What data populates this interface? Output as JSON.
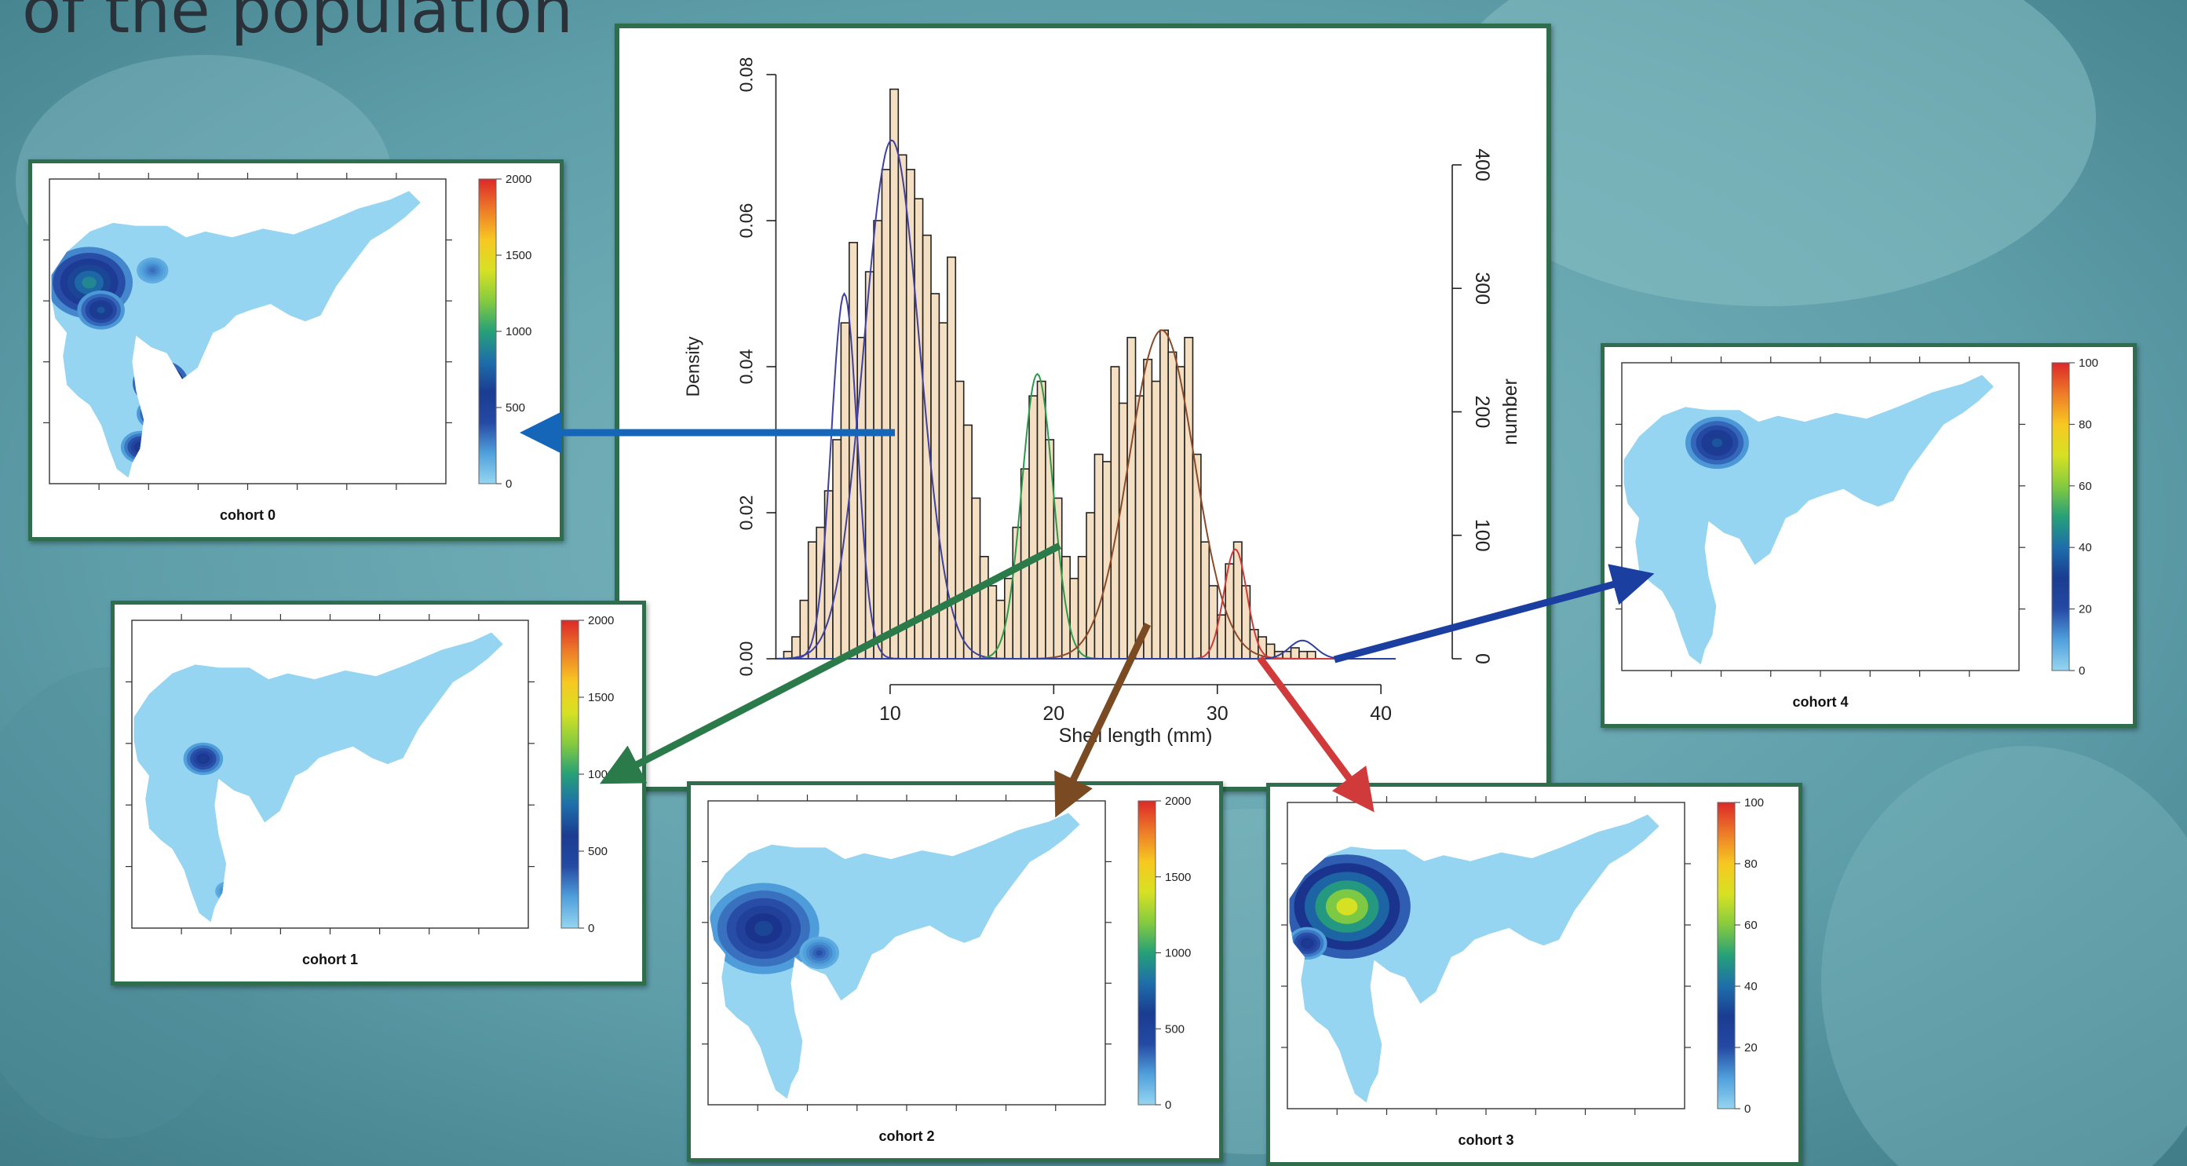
{
  "slide": {
    "title": "of the population"
  },
  "colors": {
    "frame": "#2e6e4d",
    "bar_fill": "#f5dfc2",
    "bar_stroke": "#222222",
    "map_land": "#95d5f1",
    "arrow_cohort0": "#1565b8",
    "arrow_cohort1": "#2a7a4a",
    "arrow_cohort2": "#7a4a22",
    "arrow_cohort3": "#d03a3a",
    "arrow_cohort4": "#1a3fa0"
  },
  "chart_data": [
    {
      "type": "bar",
      "xlabel": "Shell length (mm)",
      "ylabel": "Density",
      "y2label": "number",
      "xlim": [
        3,
        41
      ],
      "xticks": [
        10,
        20,
        30,
        40
      ],
      "ylim": [
        0,
        0.08
      ],
      "yticks": [
        0.0,
        0.02,
        0.04,
        0.06,
        0.08
      ],
      "y2lim": [
        0,
        400
      ],
      "y2ticks": [
        0,
        100,
        200,
        300,
        400
      ],
      "bins": [
        {
          "x0": 3.5,
          "x1": 4.0,
          "density": 0.001
        },
        {
          "x0": 4.0,
          "x1": 4.5,
          "density": 0.003
        },
        {
          "x0": 4.5,
          "x1": 5.0,
          "density": 0.008
        },
        {
          "x0": 5.0,
          "x1": 5.5,
          "density": 0.016
        },
        {
          "x0": 5.5,
          "x1": 6.0,
          "density": 0.018
        },
        {
          "x0": 6.0,
          "x1": 6.5,
          "density": 0.023
        },
        {
          "x0": 6.5,
          "x1": 7.0,
          "density": 0.03
        },
        {
          "x0": 7.0,
          "x1": 7.5,
          "density": 0.046
        },
        {
          "x0": 7.5,
          "x1": 8.0,
          "density": 0.057
        },
        {
          "x0": 8.0,
          "x1": 8.5,
          "density": 0.044
        },
        {
          "x0": 8.5,
          "x1": 9.0,
          "density": 0.053
        },
        {
          "x0": 9.0,
          "x1": 9.5,
          "density": 0.06
        },
        {
          "x0": 9.5,
          "x1": 10.0,
          "density": 0.067
        },
        {
          "x0": 10.0,
          "x1": 10.5,
          "density": 0.078
        },
        {
          "x0": 10.5,
          "x1": 11.0,
          "density": 0.069
        },
        {
          "x0": 11.0,
          "x1": 11.5,
          "density": 0.067
        },
        {
          "x0": 11.5,
          "x1": 12.0,
          "density": 0.063
        },
        {
          "x0": 12.0,
          "x1": 12.5,
          "density": 0.058
        },
        {
          "x0": 12.5,
          "x1": 13.0,
          "density": 0.05
        },
        {
          "x0": 13.0,
          "x1": 13.5,
          "density": 0.046
        },
        {
          "x0": 13.5,
          "x1": 14.0,
          "density": 0.055
        },
        {
          "x0": 14.0,
          "x1": 14.5,
          "density": 0.038
        },
        {
          "x0": 14.5,
          "x1": 15.0,
          "density": 0.032
        },
        {
          "x0": 15.0,
          "x1": 15.5,
          "density": 0.022
        },
        {
          "x0": 15.5,
          "x1": 16.0,
          "density": 0.014
        },
        {
          "x0": 16.0,
          "x1": 16.5,
          "density": 0.01
        },
        {
          "x0": 16.5,
          "x1": 17.0,
          "density": 0.008
        },
        {
          "x0": 17.0,
          "x1": 17.5,
          "density": 0.011
        },
        {
          "x0": 17.5,
          "x1": 18.0,
          "density": 0.018
        },
        {
          "x0": 18.0,
          "x1": 18.5,
          "density": 0.026
        },
        {
          "x0": 18.5,
          "x1": 19.0,
          "density": 0.036
        },
        {
          "x0": 19.0,
          "x1": 19.5,
          "density": 0.038
        },
        {
          "x0": 19.5,
          "x1": 20.0,
          "density": 0.03
        },
        {
          "x0": 20.0,
          "x1": 20.5,
          "density": 0.022
        },
        {
          "x0": 20.5,
          "x1": 21.0,
          "density": 0.014
        },
        {
          "x0": 21.0,
          "x1": 21.5,
          "density": 0.011
        },
        {
          "x0": 21.5,
          "x1": 22.0,
          "density": 0.014
        },
        {
          "x0": 22.0,
          "x1": 22.5,
          "density": 0.02
        },
        {
          "x0": 22.5,
          "x1": 23.0,
          "density": 0.028
        },
        {
          "x0": 23.0,
          "x1": 23.5,
          "density": 0.027
        },
        {
          "x0": 23.5,
          "x1": 24.0,
          "density": 0.04
        },
        {
          "x0": 24.0,
          "x1": 24.5,
          "density": 0.035
        },
        {
          "x0": 24.5,
          "x1": 25.0,
          "density": 0.044
        },
        {
          "x0": 25.0,
          "x1": 25.5,
          "density": 0.036
        },
        {
          "x0": 25.5,
          "x1": 26.0,
          "density": 0.041
        },
        {
          "x0": 26.0,
          "x1": 26.5,
          "density": 0.038
        },
        {
          "x0": 26.5,
          "x1": 27.0,
          "density": 0.045
        },
        {
          "x0": 27.0,
          "x1": 27.5,
          "density": 0.042
        },
        {
          "x0": 27.5,
          "x1": 28.0,
          "density": 0.04
        },
        {
          "x0": 28.0,
          "x1": 28.5,
          "density": 0.044
        },
        {
          "x0": 28.5,
          "x1": 29.0,
          "density": 0.028
        },
        {
          "x0": 29.0,
          "x1": 29.5,
          "density": 0.016
        },
        {
          "x0": 29.5,
          "x1": 30.0,
          "density": 0.01
        },
        {
          "x0": 30.0,
          "x1": 30.5,
          "density": 0.006
        },
        {
          "x0": 30.5,
          "x1": 31.0,
          "density": 0.013
        },
        {
          "x0": 31.0,
          "x1": 31.5,
          "density": 0.016
        },
        {
          "x0": 31.5,
          "x1": 32.0,
          "density": 0.01
        },
        {
          "x0": 32.0,
          "x1": 32.5,
          "density": 0.004
        },
        {
          "x0": 32.5,
          "x1": 33.0,
          "density": 0.003
        },
        {
          "x0": 33.0,
          "x1": 33.5,
          "density": 0.002
        },
        {
          "x0": 33.5,
          "x1": 34.0,
          "density": 0.001
        },
        {
          "x0": 34.0,
          "x1": 34.5,
          "density": 0.001
        },
        {
          "x0": 34.5,
          "x1": 35.0,
          "density": 0.0015
        },
        {
          "x0": 35.0,
          "x1": 35.5,
          "density": 0.001
        },
        {
          "x0": 35.5,
          "x1": 36.0,
          "density": 0.001
        }
      ],
      "curves": [
        {
          "color": "#4040a0",
          "mean": 7.2,
          "sd": 0.8,
          "peak": 0.05
        },
        {
          "color": "#4040a0",
          "mean": 10.1,
          "sd": 1.7,
          "peak": 0.071
        },
        {
          "color": "#2a9a4a",
          "mean": 19.0,
          "sd": 0.95,
          "peak": 0.039
        },
        {
          "color": "#8a4a2a",
          "mean": 26.6,
          "sd": 2.0,
          "peak": 0.045
        },
        {
          "color": "#d03a3a",
          "mean": 31.1,
          "sd": 0.7,
          "peak": 0.015
        },
        {
          "color": "#3040a0",
          "mean": 35.2,
          "sd": 0.8,
          "peak": 0.0025
        }
      ]
    },
    {
      "type": "heatmap",
      "caption": "cohort 0",
      "scale_max": 2000,
      "scale_ticks": [
        "0",
        "500",
        "1000",
        "1500",
        "2000"
      ],
      "hotspots": [
        {
          "x": 0.1,
          "y": 0.34,
          "r": 0.11,
          "level": 0.35
        },
        {
          "x": 0.13,
          "y": 0.43,
          "r": 0.06,
          "level": 0.25
        },
        {
          "x": 0.28,
          "y": 0.67,
          "r": 0.07,
          "level": 0.55
        },
        {
          "x": 0.27,
          "y": 0.77,
          "r": 0.05,
          "level": 0.25
        },
        {
          "x": 0.23,
          "y": 0.88,
          "r": 0.05,
          "level": 0.2
        },
        {
          "x": 0.26,
          "y": 0.3,
          "r": 0.04,
          "level": 0.05
        }
      ]
    },
    {
      "type": "heatmap",
      "caption": "cohort 1",
      "scale_max": 2000,
      "scale_ticks": [
        "0",
        "500",
        "1000",
        "1500",
        "2000"
      ],
      "hotspots": [
        {
          "x": 0.18,
          "y": 0.45,
          "r": 0.05,
          "level": 0.2
        },
        {
          "x": 0.27,
          "y": 0.78,
          "r": 0.03,
          "level": 0.05
        },
        {
          "x": 0.24,
          "y": 0.88,
          "r": 0.03,
          "level": 0.05
        }
      ]
    },
    {
      "type": "heatmap",
      "caption": "cohort 2",
      "scale_max": 2000,
      "scale_ticks": [
        "0",
        "500",
        "1000",
        "1500",
        "2000"
      ],
      "hotspots": [
        {
          "x": 0.14,
          "y": 0.42,
          "r": 0.14,
          "level": 0.22
        },
        {
          "x": 0.28,
          "y": 0.5,
          "r": 0.05,
          "level": 0.08
        }
      ]
    },
    {
      "type": "heatmap",
      "caption": "cohort 3",
      "scale_max": 100,
      "scale_ticks": [
        "0",
        "20",
        "40",
        "60",
        "80",
        "100"
      ],
      "hotspots": [
        {
          "x": 0.15,
          "y": 0.34,
          "r": 0.16,
          "level": 0.6
        },
        {
          "x": 0.05,
          "y": 0.46,
          "r": 0.05,
          "level": 0.2
        }
      ]
    },
    {
      "type": "heatmap",
      "caption": "cohort 4",
      "scale_max": 100,
      "scale_ticks": [
        "0",
        "20",
        "40",
        "60",
        "80",
        "100"
      ],
      "hotspots": [
        {
          "x": 0.24,
          "y": 0.26,
          "r": 0.08,
          "level": 0.25
        }
      ]
    }
  ]
}
